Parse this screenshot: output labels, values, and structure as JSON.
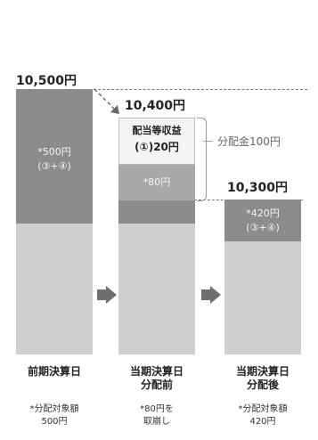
{
  "header": {
    "text": ""
  },
  "prices": {
    "p1": "10,500円",
    "p2": "10,400円",
    "p3": "10,300円"
  },
  "bar1": {
    "label_a": "*500円",
    "label_b": "(③+④)"
  },
  "bar2": {
    "box_label_a": "配当等収益",
    "box_label_b": "(①)20円",
    "mid_label": "*80円"
  },
  "bar3": {
    "label_a": "*420円",
    "label_b": "(③+④)"
  },
  "bracket_label": "分配金100円",
  "columns": [
    {
      "title_a": "前期決算日",
      "title_b": "",
      "note_a": "*分配対象額",
      "note_b": "500円"
    },
    {
      "title_a": "当期決算日",
      "title_b": "分配前",
      "note_a": "*80円を",
      "note_b": "取崩し"
    },
    {
      "title_a": "当期決算日",
      "title_b": "分配後",
      "note_a": "*分配対象額",
      "note_b": "420円"
    }
  ],
  "colors": {
    "dark": "#8c8c8c",
    "light": "#cfcfcf",
    "pale": "#e6e6e6",
    "arrow": "#6e6e6e"
  }
}
